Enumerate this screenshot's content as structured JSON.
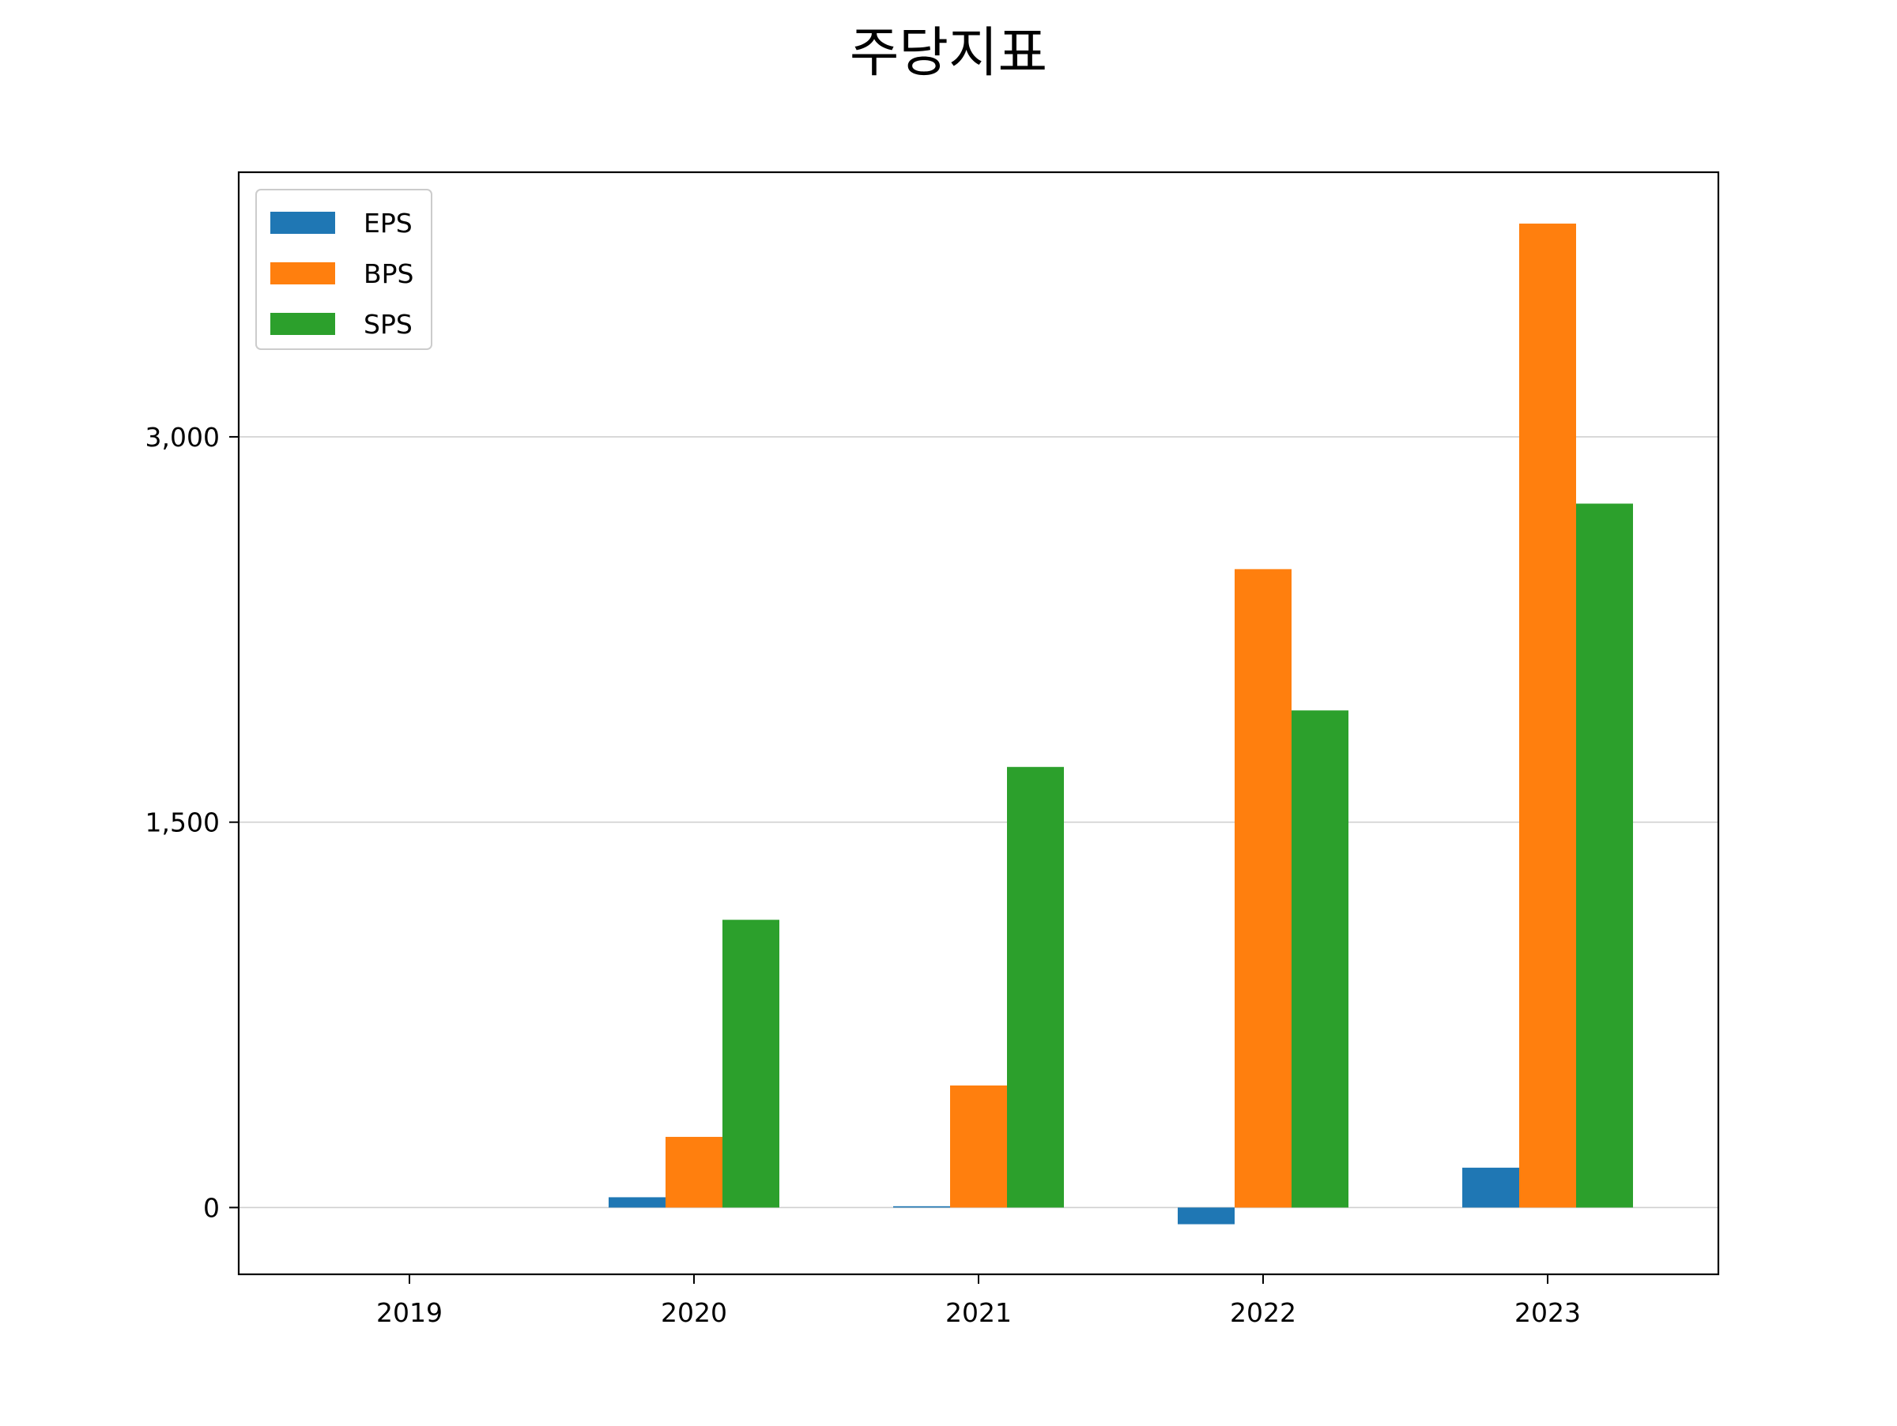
{
  "chart_data": {
    "type": "bar",
    "title": "주당지표",
    "xlabel": "",
    "ylabel": "",
    "categories": [
      "2019",
      "2020",
      "2021",
      "2022",
      "2023"
    ],
    "series": [
      {
        "name": "EPS",
        "color": "#1f77b4",
        "values": [
          0,
          40,
          5,
          -65,
          155
        ]
      },
      {
        "name": "BPS",
        "color": "#ff7f0e",
        "values": [
          0,
          275,
          475,
          2485,
          3830
        ]
      },
      {
        "name": "SPS",
        "color": "#2ca02c",
        "values": [
          0,
          1120,
          1715,
          1935,
          2740
        ]
      }
    ],
    "ylim": [
      -260,
      4030
    ],
    "yticks": [
      0,
      1500,
      3000
    ],
    "ytick_labels": [
      "0",
      "1,500",
      "3,000"
    ],
    "grid": "y",
    "legend": "top-left"
  }
}
